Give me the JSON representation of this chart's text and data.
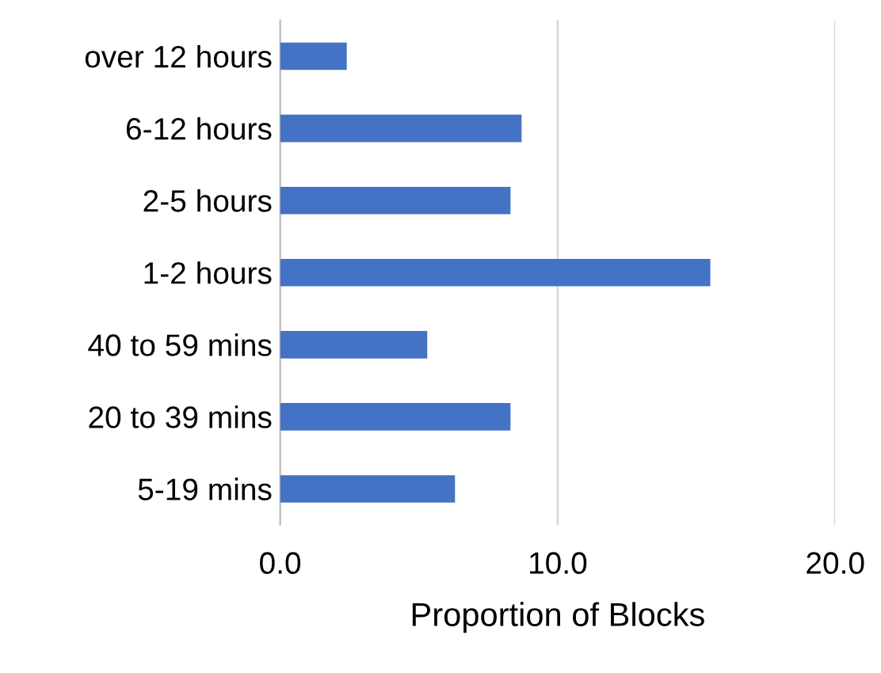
{
  "chart_data": {
    "type": "bar",
    "orientation": "horizontal",
    "xlabel": "Proportion of Blocks",
    "categories": [
      "over 12 hours",
      "6-12 hours",
      "2-5 hours",
      "1-2 hours",
      "40 to 59 mins",
      "20 to 39 mins",
      "5-19 mins"
    ],
    "values": [
      2.4,
      8.7,
      8.3,
      15.5,
      5.3,
      8.3,
      6.3
    ],
    "color": "#4472c4",
    "xlim": [
      0,
      20
    ],
    "xticks": [
      {
        "value": 0,
        "label": "0.0"
      },
      {
        "value": 10,
        "label": "10.0"
      },
      {
        "value": 20,
        "label": "20.0"
      }
    ],
    "grid": "x"
  }
}
